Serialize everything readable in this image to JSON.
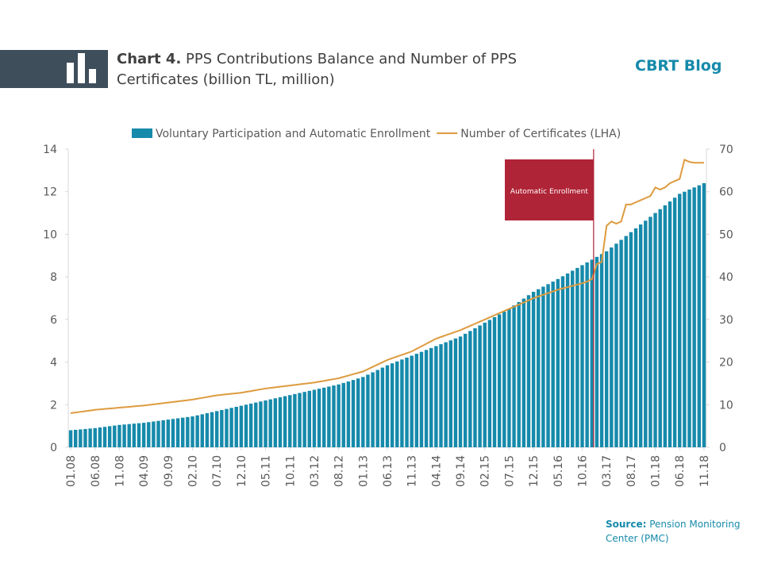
{
  "brand": "CBRT Blog",
  "source_label": "Source:",
  "source": "Pension Monitoring Center (PMC)",
  "chart_data": {
    "type": "bar",
    "title_label": "Chart 4.",
    "title": "PPS Contributions Balance and Number of PPS Certificates (billion TL, million)",
    "annotation": "Automatic Enrollment",
    "legend": "top",
    "categories": [
      "01.08",
      null,
      null,
      null,
      null,
      "06.08",
      null,
      null,
      null,
      null,
      "11.08",
      null,
      null,
      null,
      null,
      "04.09",
      null,
      null,
      null,
      null,
      "09.09",
      null,
      null,
      null,
      null,
      "02.10",
      null,
      null,
      null,
      null,
      "07.10",
      null,
      null,
      null,
      null,
      "12.10",
      null,
      null,
      null,
      null,
      "05.11",
      null,
      null,
      null,
      null,
      "10.11",
      null,
      null,
      null,
      null,
      "03.12",
      null,
      null,
      null,
      null,
      "08.12",
      null,
      null,
      null,
      null,
      "01.13",
      null,
      null,
      null,
      null,
      "06.13",
      null,
      null,
      null,
      null,
      "11.13",
      null,
      null,
      null,
      null,
      "04.14",
      null,
      null,
      null,
      null,
      "09.14",
      null,
      null,
      null,
      null,
      "02.15",
      null,
      null,
      null,
      null,
      "07.15",
      null,
      null,
      null,
      null,
      "12.15",
      null,
      null,
      null,
      null,
      "05.16",
      null,
      null,
      null,
      null,
      "10.16",
      null,
      null,
      null,
      null,
      "03.17",
      null,
      null,
      null,
      null,
      "08.17",
      null,
      null,
      null,
      null,
      "01.18",
      null,
      null,
      null,
      null,
      "06.18",
      null,
      null,
      null,
      null,
      "11.18"
    ],
    "series": [
      {
        "name": "Voluntary Participation and Automatic Enrollment",
        "type": "bar",
        "color": "#168aab",
        "values": [
          0.8,
          0.82,
          0.84,
          0.86,
          0.88,
          0.9,
          0.93,
          0.96,
          0.99,
          1.02,
          1.05,
          1.07,
          1.09,
          1.11,
          1.13,
          1.15,
          1.18,
          1.21,
          1.24,
          1.27,
          1.3,
          1.33,
          1.36,
          1.39,
          1.42,
          1.45,
          1.5,
          1.55,
          1.6,
          1.65,
          1.7,
          1.75,
          1.8,
          1.85,
          1.9,
          1.95,
          2.0,
          2.05,
          2.1,
          2.15,
          2.2,
          2.25,
          2.3,
          2.35,
          2.4,
          2.45,
          2.5,
          2.55,
          2.6,
          2.65,
          2.7,
          2.75,
          2.8,
          2.85,
          2.9,
          2.95,
          3.02,
          3.09,
          3.16,
          3.23,
          3.3,
          3.41,
          3.52,
          3.63,
          3.74,
          3.85,
          3.94,
          4.03,
          4.12,
          4.21,
          4.3,
          4.39,
          4.48,
          4.57,
          4.66,
          4.75,
          4.84,
          4.93,
          5.02,
          5.11,
          5.2,
          5.33,
          5.46,
          5.59,
          5.72,
          5.85,
          5.98,
          6.11,
          6.24,
          6.37,
          6.5,
          6.66,
          6.82,
          6.98,
          7.14,
          7.3,
          7.42,
          7.54,
          7.66,
          7.78,
          7.9,
          8.03,
          8.16,
          8.29,
          8.42,
          8.55,
          8.68,
          8.81,
          8.94,
          9.07,
          9.2,
          9.38,
          9.56,
          9.74,
          9.92,
          10.1,
          10.28,
          10.46,
          10.64,
          10.82,
          11.0,
          11.18,
          11.36,
          11.54,
          11.72,
          11.9,
          12.0,
          12.1,
          12.2,
          12.3,
          12.4
        ]
      },
      {
        "name": "Number of Certificates (LHA)",
        "type": "line",
        "axis": "y2",
        "color": "#dd9b3f",
        "values": [
          8.0,
          8.16,
          8.32,
          8.48,
          8.64,
          8.8,
          8.9,
          9.0,
          9.1,
          9.2,
          9.3,
          9.4,
          9.5,
          9.6,
          9.7,
          9.8,
          9.94,
          10.08,
          10.22,
          10.36,
          10.5,
          10.64,
          10.78,
          10.92,
          11.06,
          11.2,
          11.4,
          11.6,
          11.8,
          12.0,
          12.2,
          12.32,
          12.44,
          12.56,
          12.68,
          12.8,
          13.0,
          13.2,
          13.4,
          13.6,
          13.8,
          13.94,
          14.08,
          14.22,
          14.36,
          14.5,
          14.64,
          14.78,
          14.92,
          15.06,
          15.2,
          15.4,
          15.6,
          15.8,
          16.0,
          16.2,
          16.52,
          16.84,
          17.16,
          17.48,
          17.8,
          18.34,
          18.88,
          19.42,
          19.96,
          20.5,
          20.9,
          21.3,
          21.7,
          22.1,
          22.5,
          23.1,
          23.7,
          24.3,
          24.9,
          25.5,
          25.9,
          26.3,
          26.7,
          27.1,
          27.5,
          28.0,
          28.5,
          29.0,
          29.5,
          30.0,
          30.5,
          31.0,
          31.5,
          32.0,
          32.5,
          33.0,
          33.5,
          34.0,
          34.5,
          35.0,
          35.4,
          35.8,
          36.2,
          36.6,
          37.0,
          37.3,
          37.6,
          37.9,
          38.2,
          38.5,
          38.9,
          39.5,
          43.0,
          43.5,
          52.0,
          53.0,
          52.5,
          53.0,
          57.0,
          57.0,
          57.5,
          58.0,
          58.5,
          59.0,
          61.0,
          60.5,
          61.0,
          62.0,
          62.5,
          63.0,
          67.5,
          67.0,
          66.8,
          66.8,
          66.8
        ]
      }
    ],
    "ylim": [
      0,
      14
    ],
    "yticks": [
      0,
      2,
      4,
      6,
      8,
      10,
      12,
      14
    ],
    "y2lim": [
      0,
      70
    ],
    "y2ticks": [
      0,
      10,
      20,
      30,
      40,
      50,
      60,
      70
    ]
  }
}
